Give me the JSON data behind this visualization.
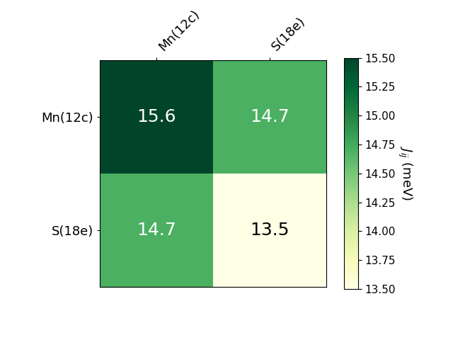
{
  "labels": [
    "Mn(12c)",
    "S(18e)"
  ],
  "matrix": [
    [
      15.6,
      14.7
    ],
    [
      14.7,
      13.5
    ]
  ],
  "vmin": 13.5,
  "vmax": 15.5,
  "cmap": "YlGn",
  "colorbar_label": "$J_{ij}$ (meV)",
  "colorbar_ticks": [
    13.5,
    13.75,
    14.0,
    14.25,
    14.5,
    14.75,
    15.0,
    15.25,
    15.5
  ],
  "colorbar_tick_labels": [
    "13.50",
    "13.75",
    "14.00",
    "14.25",
    "14.50",
    "14.75",
    "15.00",
    "15.25",
    "15.50"
  ],
  "cell_text_color_threshold": 14.4,
  "text_fontsize": 18,
  "label_fontsize": 13,
  "colorbar_fontsize": 11,
  "colorbar_label_fontsize": 13,
  "figsize": [
    6.4,
    4.8
  ],
  "dpi": 100
}
